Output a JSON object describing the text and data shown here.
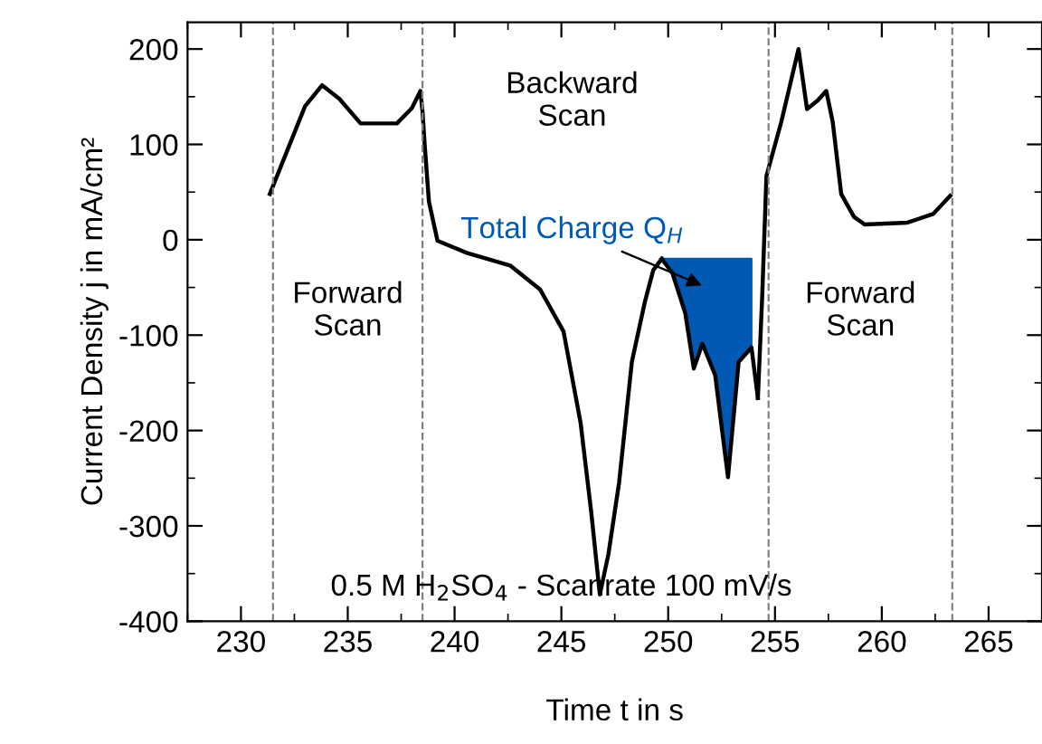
{
  "chart_data": {
    "type": "line",
    "xlabel": "Time t in s",
    "ylabel": "Current Density j in mA/cm²",
    "xlim": [
      227.5,
      267.5
    ],
    "ylim": [
      -400,
      228
    ],
    "xticks": [
      230,
      235,
      240,
      245,
      250,
      255,
      260,
      265
    ],
    "yticks": [
      -400,
      -300,
      -200,
      -100,
      0,
      100,
      200
    ],
    "grid": false,
    "marker": "none",
    "line_style": "solid",
    "series": [
      {
        "type": "line",
        "color": "#000000",
        "x": [
          231.35,
          233.0,
          233.8,
          234.6,
          235.6,
          237.3,
          238.0,
          238.4,
          238.5,
          238.6,
          238.8,
          239.2,
          240.6,
          242.6,
          244.0,
          245.1,
          245.9,
          246.4,
          246.8,
          247.2,
          247.7,
          248.3,
          248.9,
          249.3,
          249.7
        ],
        "values": [
          48,
          140,
          162,
          148,
          122,
          122,
          138,
          156,
          134,
          100,
          40,
          -1,
          -14,
          -27,
          -52,
          -96,
          -192,
          -286,
          -372,
          -330,
          -255,
          -128,
          -66,
          -32,
          -20
        ]
      },
      {
        "type": "line",
        "color": "#000000",
        "x": [
          249.7,
          250.2,
          250.8,
          251.2,
          251.6,
          252.2,
          252.8,
          253.3,
          253.9,
          254.2
        ],
        "values": [
          -20,
          -35,
          -77,
          -135,
          -109,
          -142,
          -249,
          -128,
          -113,
          -166
        ],
        "lower": [
          -20,
          -35,
          -77,
          -135,
          -109,
          -142,
          -249,
          -128,
          -113,
          null
        ],
        "upper": [
          -20,
          -20,
          -20,
          -20,
          -20,
          -20,
          -20,
          -20,
          -20,
          null
        ]
      },
      {
        "type": "line",
        "color": "#000000",
        "x": [
          254.2,
          254.4,
          254.6,
          255.3,
          256.1,
          256.5,
          257.0,
          257.4,
          257.7,
          258.1,
          258.7,
          259.2,
          261.2,
          262.4,
          263.2
        ],
        "values": [
          -166,
          -60,
          67,
          124,
          200,
          137,
          146,
          156,
          124,
          48,
          24,
          16,
          18,
          27,
          46
        ]
      }
    ],
    "ref_lines": [
      {
        "axis": "x",
        "value": 231.5,
        "color": "#808080",
        "line_style": "dashed"
      },
      {
        "axis": "x",
        "value": 238.5,
        "color": "#808080",
        "line_style": "dashed"
      },
      {
        "axis": "x",
        "value": 254.7,
        "color": "#808080",
        "line_style": "dashed"
      },
      {
        "axis": "x",
        "value": 263.3,
        "color": "#808080",
        "line_style": "dashed"
      }
    ],
    "annotations": [
      "Forward\nScan",
      "Backward\nScan",
      "Forward\nScan",
      "Total Charge Q$_{H}$",
      "0.5 M H$_{2}$SO$_{4}$ - Scanrate 100 mV/s"
    ]
  }
}
